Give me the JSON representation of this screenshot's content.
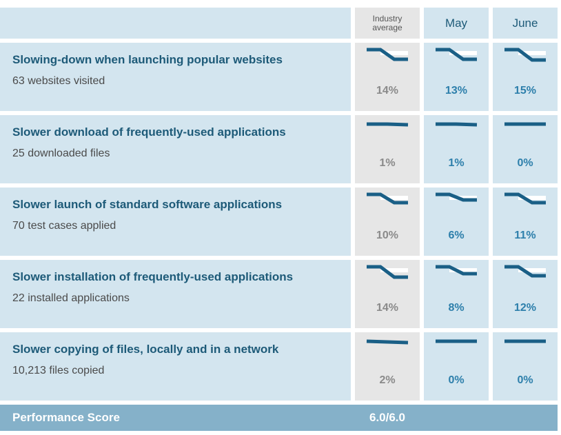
{
  "header": {
    "industry_label": "Industry average",
    "month1_label": "May",
    "month2_label": "June"
  },
  "rows": [
    {
      "title": "Slowing-down when launching popular websites",
      "subtitle": "63 websites visited",
      "industry": "14%",
      "month1": "13%",
      "month2": "15%"
    },
    {
      "title": "Slower download of frequently-used applications",
      "subtitle": "25 downloaded files",
      "industry": "1%",
      "month1": "1%",
      "month2": "0%"
    },
    {
      "title": "Slower launch of standard software applications",
      "subtitle": "70 test cases applied",
      "industry": "10%",
      "month1": "6%",
      "month2": "11%"
    },
    {
      "title": "Slower installation of frequently-used applications",
      "subtitle": "22 installed applications",
      "industry": "14%",
      "month1": "8%",
      "month2": "12%"
    },
    {
      "title": "Slower copying of files, locally and in a network",
      "subtitle": "10,213 files copied",
      "industry": "2%",
      "month1": "0%",
      "month2": "0%"
    }
  ],
  "footer": {
    "label": "Performance Score",
    "score": "6.0/6.0"
  },
  "colors": {
    "row_bg": "#d3e5ef",
    "industry_bg": "#e6e6e6",
    "title_text": "#1d5a78",
    "month_value": "#2d7fab",
    "industry_value": "#8a8a8a",
    "spark_line": "#1a5f86",
    "footer_bg": "#85b1c9"
  }
}
